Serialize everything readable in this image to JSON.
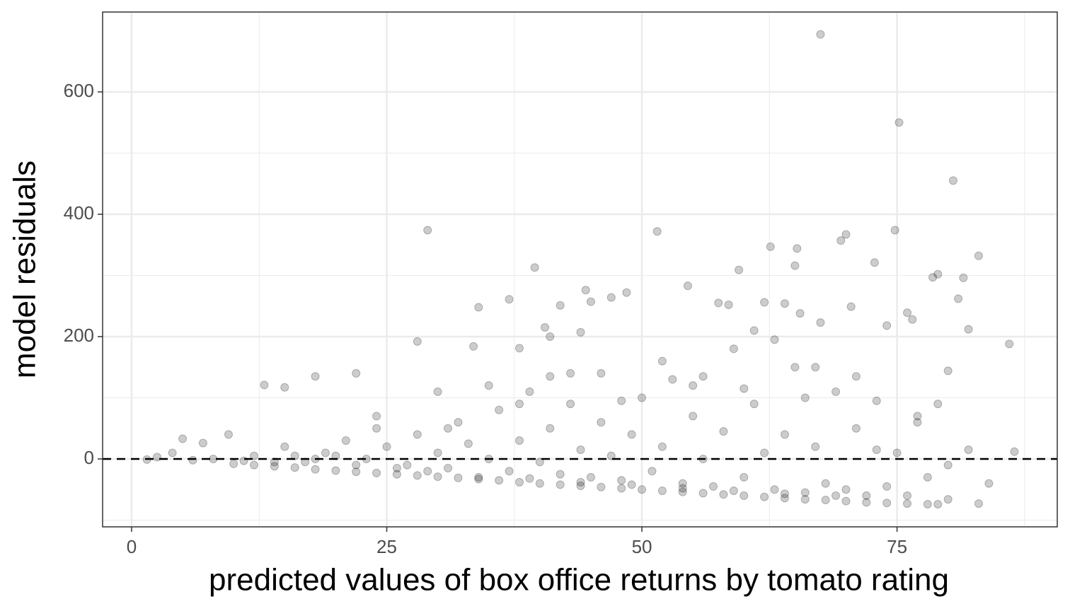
{
  "chart_data": {
    "type": "scatter",
    "xlabel": "predicted values of box office returns by tomato rating",
    "ylabel": "model residuals",
    "xlim": [
      -2.84,
      90.7
    ],
    "ylim": [
      -111,
      730.6
    ],
    "xticks": [
      0,
      25,
      50,
      75
    ],
    "yticks": [
      0,
      200,
      400,
      600
    ],
    "x_minor_grid": [
      12.5,
      37.5,
      62.5,
      87.5
    ],
    "y_minor_grid": [
      -100,
      100,
      300,
      500
    ],
    "grid": true,
    "hline": 0,
    "color": "#000000",
    "x": [
      67.5,
      75.2,
      80.5,
      29,
      51.5,
      74.8,
      83,
      39.5,
      70,
      69.5,
      62.6,
      65.2,
      59.5,
      65,
      72.8,
      78.5,
      79,
      81.5,
      86,
      82,
      81,
      80,
      37,
      34,
      42,
      44.5,
      45,
      47,
      48.5,
      54.5,
      57.5,
      58.5,
      62,
      64,
      65.5,
      67.5,
      70.5,
      74,
      76,
      76.5,
      40.5,
      41,
      44,
      13,
      15,
      18,
      22,
      28,
      33.5,
      38,
      86.5,
      83,
      84,
      82,
      1.5,
      2.5,
      5,
      7,
      9.5,
      10,
      12,
      14,
      16,
      18,
      20,
      22,
      24,
      26,
      28,
      30,
      32,
      34,
      36,
      38,
      40,
      42,
      44,
      46,
      48,
      50,
      52,
      54,
      56,
      58,
      60,
      62,
      64,
      66,
      68,
      70,
      72,
      74,
      76,
      78,
      80,
      79,
      12,
      15,
      17,
      19,
      21,
      23,
      24,
      25,
      27,
      28,
      30,
      31,
      32,
      33,
      35,
      36,
      37,
      38,
      39,
      40,
      41,
      42,
      43,
      44,
      45,
      46,
      47,
      48,
      49,
      50,
      51,
      52,
      53,
      54,
      55,
      56,
      57,
      58,
      59,
      60,
      61,
      62,
      63,
      64,
      65,
      66,
      67,
      68,
      69,
      70,
      71,
      72,
      73,
      74,
      75,
      76,
      77,
      78,
      79,
      80,
      26,
      29,
      34,
      39,
      44,
      49,
      54,
      59,
      64,
      69,
      20,
      22,
      18,
      16,
      14,
      11,
      8,
      6,
      4,
      24,
      30,
      35,
      41,
      46,
      52,
      55,
      60,
      66,
      71,
      56,
      63,
      61,
      67,
      73,
      77,
      48,
      43,
      38,
      31
    ],
    "values": [
      694,
      550,
      455,
      374,
      372,
      374,
      332,
      313,
      367,
      357,
      347,
      344,
      309,
      316,
      321,
      297,
      302,
      296,
      188,
      212,
      262,
      144,
      261,
      248,
      251,
      276,
      257,
      264,
      272,
      283,
      255,
      252,
      256,
      254,
      238,
      223,
      249,
      218,
      239,
      228,
      215,
      200,
      207,
      121,
      117,
      135,
      140,
      192,
      184,
      181,
      12,
      -73,
      -40,
      15,
      -1,
      3,
      33,
      26,
      40,
      -8,
      -10,
      -12,
      -14,
      -17,
      -19,
      -21,
      -23,
      -25,
      -27,
      -29,
      -31,
      -33,
      -35,
      -38,
      -40,
      -42,
      -44,
      -46,
      -48,
      -50,
      -52,
      -54,
      -56,
      -58,
      -60,
      -62,
      -64,
      -66,
      -67,
      -69,
      -71,
      -72,
      -73,
      -74,
      -66,
      -74,
      5,
      20,
      -5,
      10,
      30,
      0,
      50,
      20,
      -10,
      40,
      10,
      -15,
      60,
      25,
      0,
      80,
      -20,
      30,
      110,
      -5,
      50,
      -25,
      90,
      15,
      -30,
      60,
      5,
      -35,
      40,
      100,
      -20,
      20,
      130,
      -40,
      70,
      0,
      -45,
      45,
      180,
      -30,
      90,
      10,
      -50,
      40,
      150,
      -55,
      20,
      -40,
      110,
      -50,
      50,
      -60,
      15,
      -45,
      10,
      -60,
      60,
      -30,
      90,
      -10,
      -15,
      -20,
      -30,
      -32,
      -38,
      -42,
      -48,
      -52,
      -57,
      -60,
      5,
      -10,
      0,
      5,
      -5,
      -3,
      0,
      -2,
      10,
      70,
      110,
      120,
      135,
      140,
      160,
      120,
      115,
      100,
      135,
      135,
      195,
      210,
      150,
      95,
      70,
      95,
      140,
      90,
      50
    ]
  }
}
